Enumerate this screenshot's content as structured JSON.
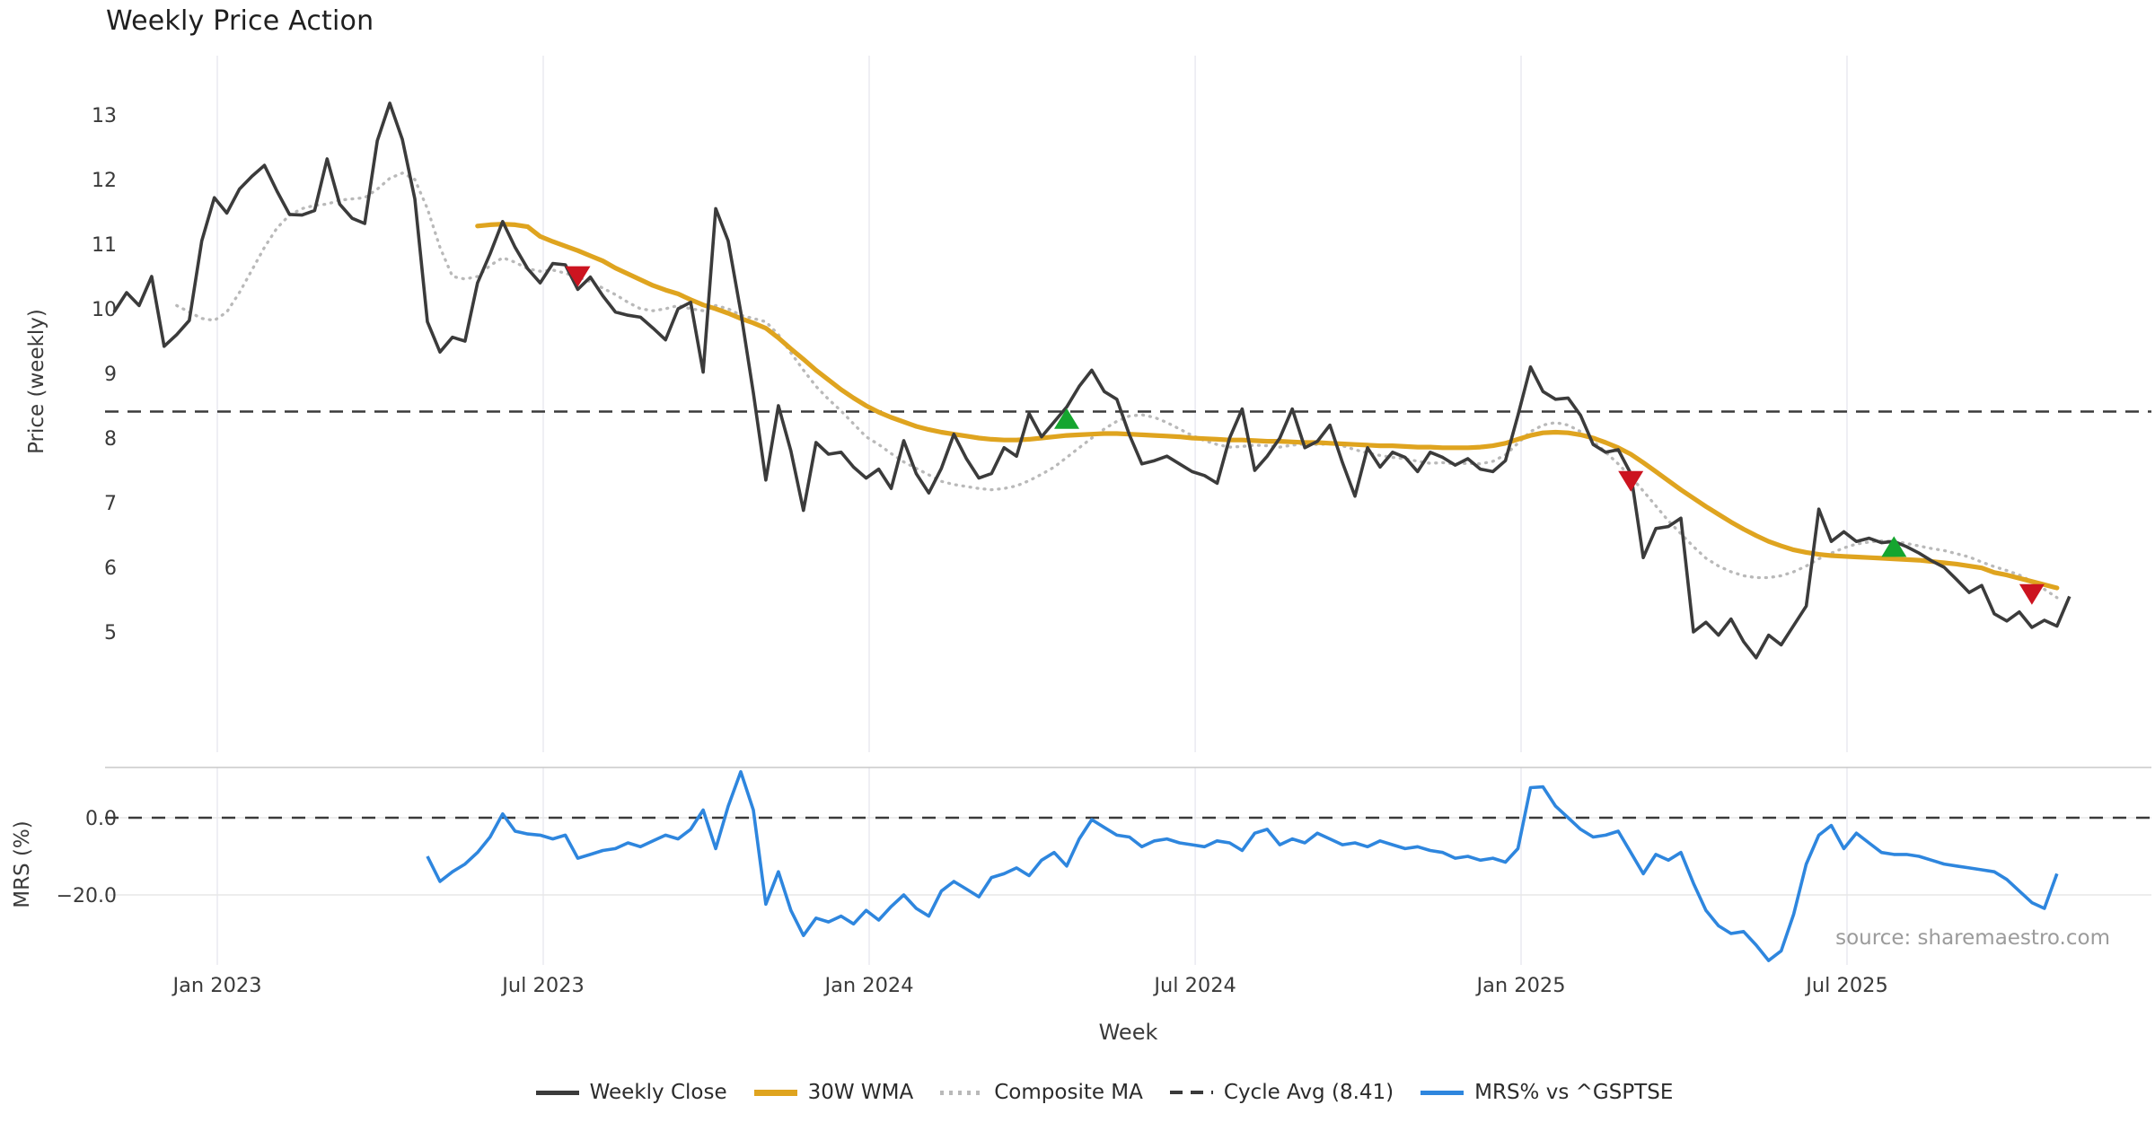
{
  "title": "Weekly Price Action",
  "source_note": "source: sharemaestro.com",
  "axes": {
    "price_ylabel": "Price (weekly)",
    "mrs_ylabel": "MRS (%)",
    "xlabel": "Week"
  },
  "legend": [
    {
      "label": "Weekly Close",
      "style": "solid",
      "color": "#3b3b3b",
      "thick": 5
    },
    {
      "label": "30W WMA",
      "style": "solid",
      "color": "#dfa41f",
      "thick": 7
    },
    {
      "label": "Composite MA",
      "style": "dotted",
      "color": "#b9b9b9",
      "thick": 5
    },
    {
      "label": "Cycle Avg (8.41)",
      "style": "dashed",
      "color": "#3a3a3a",
      "thick": 4
    },
    {
      "label": "MRS% vs ^GSPTSE",
      "style": "solid",
      "color": "#2e86de",
      "thick": 5
    }
  ],
  "colors": {
    "weekly_close": "#3b3b3b",
    "wma30": "#dfa41f",
    "composite": "#b9b9b9",
    "cycle_avg": "#3a3a3a",
    "mrs": "#2e86de",
    "buy_marker": "#15a52f",
    "sell_marker": "#cc1420",
    "gridline": "#ebebf2",
    "mrs_gridline": "#e7e7e7",
    "separator": "#c9c9c9",
    "tick_text": "#3a3a3a"
  },
  "chart_data": {
    "type": "line",
    "x_unit": "weekly index, week 0 ≈ Nov 2022",
    "x_ticks": [
      {
        "week": 8.24,
        "label": "Jan 2023"
      },
      {
        "week": 34.24,
        "label": "Jul 2023"
      },
      {
        "week": 60.24,
        "label": "Jan 2024"
      },
      {
        "week": 86.25,
        "label": "Jul 2024"
      },
      {
        "week": 112.25,
        "label": "Jan 2025"
      },
      {
        "week": 138.25,
        "label": "Jul 2025"
      }
    ],
    "price_panel": {
      "ylabel": "Price (weekly)",
      "ylim": [
        3.3,
        13.9
      ],
      "yticks": [
        5,
        6,
        7,
        8,
        9,
        10,
        11,
        12,
        13
      ],
      "grid": "vertical-only",
      "cycle_avg": 8.41,
      "series": [
        {
          "name": "Weekly Close",
          "start_week": 0,
          "values": [
            9.95,
            10.25,
            10.05,
            10.5,
            9.42,
            9.6,
            9.82,
            11.05,
            11.72,
            11.48,
            11.85,
            12.05,
            12.22,
            11.82,
            11.46,
            11.45,
            11.52,
            12.32,
            11.62,
            11.4,
            11.32,
            12.6,
            13.18,
            12.62,
            11.7,
            9.8,
            9.33,
            9.56,
            9.5,
            10.4,
            10.85,
            11.35,
            10.95,
            10.62,
            10.4,
            10.7,
            10.68,
            10.3,
            10.49,
            10.2,
            9.95,
            9.9,
            9.87,
            9.7,
            9.52,
            10.0,
            10.1,
            9.02,
            11.55,
            11.05,
            9.95,
            8.7,
            7.35,
            8.5,
            7.8,
            6.88,
            7.93,
            7.75,
            7.78,
            7.55,
            7.38,
            7.52,
            7.22,
            7.96,
            7.45,
            7.15,
            7.53,
            8.06,
            7.68,
            7.38,
            7.45,
            7.85,
            7.72,
            8.38,
            8.02,
            8.25,
            8.48,
            8.8,
            9.05,
            8.72,
            8.6,
            8.05,
            7.6,
            7.65,
            7.72,
            7.6,
            7.48,
            7.42,
            7.3,
            8.0,
            8.45,
            7.5,
            7.72,
            8.0,
            8.45,
            7.85,
            7.95,
            8.2,
            7.62,
            7.1,
            7.85,
            7.55,
            7.78,
            7.7,
            7.48,
            7.78,
            7.7,
            7.58,
            7.68,
            7.52,
            7.48,
            7.65,
            8.35,
            9.1,
            8.72,
            8.6,
            8.62,
            8.35,
            7.9,
            7.78,
            7.82,
            7.45,
            6.15,
            6.6,
            6.63,
            6.76,
            5.0,
            5.15,
            4.95,
            5.2,
            4.85,
            4.6,
            4.95,
            4.8,
            5.1,
            5.4,
            6.9,
            6.4,
            6.55,
            6.4,
            6.45,
            6.38,
            6.4,
            6.32,
            6.22,
            6.1,
            6.0,
            5.81,
            5.61,
            5.72,
            5.28,
            5.17,
            5.31,
            5.07,
            5.18,
            5.09,
            5.55
          ]
        },
        {
          "name": "30W WMA",
          "start_week": 29,
          "values": [
            11.28,
            11.3,
            11.31,
            11.3,
            11.27,
            11.12,
            11.04,
            10.97,
            10.9,
            10.82,
            10.74,
            10.63,
            10.54,
            10.45,
            10.36,
            10.29,
            10.23,
            10.14,
            10.06,
            10.0,
            9.93,
            9.85,
            9.78,
            9.7,
            9.55,
            9.38,
            9.22,
            9.05,
            8.9,
            8.75,
            8.62,
            8.5,
            8.4,
            8.32,
            8.25,
            8.18,
            8.13,
            8.09,
            8.06,
            8.03,
            8.0,
            7.98,
            7.97,
            7.97,
            7.98,
            8.0,
            8.02,
            8.04,
            8.05,
            8.06,
            8.07,
            8.07,
            8.06,
            8.05,
            8.04,
            8.03,
            8.02,
            8.0,
            7.99,
            7.98,
            7.97,
            7.97,
            7.96,
            7.95,
            7.95,
            7.94,
            7.93,
            7.93,
            7.92,
            7.91,
            7.9,
            7.89,
            7.88,
            7.88,
            7.87,
            7.86,
            7.86,
            7.85,
            7.85,
            7.85,
            7.86,
            7.88,
            7.92,
            7.98,
            8.04,
            8.08,
            8.09,
            8.08,
            8.05,
            8.0,
            7.93,
            7.85,
            7.75,
            7.62,
            7.48,
            7.34,
            7.2,
            7.07,
            6.94,
            6.82,
            6.7,
            6.59,
            6.49,
            6.4,
            6.33,
            6.27,
            6.23,
            6.2,
            6.18,
            6.17,
            6.16,
            6.15,
            6.14,
            6.13,
            6.12,
            6.11,
            6.09,
            6.07,
            6.05,
            6.02,
            5.99,
            5.92,
            5.88,
            5.83,
            5.78,
            5.73,
            5.68
          ]
        },
        {
          "name": "Composite MA",
          "start_week": 5,
          "values": [
            10.05,
            9.95,
            9.85,
            9.82,
            9.95,
            10.25,
            10.6,
            10.95,
            11.25,
            11.45,
            11.55,
            11.6,
            11.62,
            11.68,
            11.7,
            11.72,
            11.85,
            12.02,
            12.1,
            12.0,
            11.55,
            10.95,
            10.5,
            10.46,
            10.5,
            10.67,
            10.79,
            10.72,
            10.62,
            10.58,
            10.6,
            10.55,
            10.49,
            10.42,
            10.32,
            10.22,
            10.1,
            10.0,
            9.97,
            10.0,
            10.05,
            10.0,
            9.97,
            10.05,
            10.0,
            9.9,
            9.85,
            9.8,
            9.6,
            9.32,
            9.05,
            8.8,
            8.6,
            8.42,
            8.22,
            8.02,
            7.9,
            7.76,
            7.63,
            7.53,
            7.43,
            7.33,
            7.28,
            7.25,
            7.22,
            7.2,
            7.22,
            7.26,
            7.34,
            7.44,
            7.55,
            7.7,
            7.85,
            8.0,
            8.14,
            8.26,
            8.34,
            8.36,
            8.32,
            8.24,
            8.14,
            8.04,
            7.96,
            7.9,
            7.86,
            7.87,
            7.89,
            7.88,
            7.86,
            7.89,
            7.91,
            7.9,
            7.91,
            7.88,
            7.82,
            7.77,
            7.73,
            7.7,
            7.68,
            7.64,
            7.61,
            7.62,
            7.6,
            7.61,
            7.6,
            7.64,
            7.74,
            7.92,
            8.1,
            8.2,
            8.24,
            8.2,
            8.1,
            7.95,
            7.78,
            7.6,
            7.4,
            7.18,
            6.95,
            6.72,
            6.52,
            6.32,
            6.14,
            6.02,
            5.93,
            5.87,
            5.84,
            5.84,
            5.87,
            5.93,
            6.02,
            6.13,
            6.22,
            6.3,
            6.36,
            6.39,
            6.41,
            6.4,
            6.37,
            6.33,
            6.29,
            6.26,
            6.21,
            6.16,
            6.08,
            6.01,
            5.95,
            5.88,
            5.78,
            5.66,
            5.53
          ]
        }
      ],
      "markers": {
        "sell": [
          {
            "week": 37,
            "price": 10.52
          },
          {
            "week": 121,
            "price": 7.35
          },
          {
            "week": 153,
            "price": 5.6
          }
        ],
        "buy": [
          {
            "week": 76,
            "price": 8.28
          },
          {
            "week": 142,
            "price": 6.3
          }
        ]
      }
    },
    "mrs_panel": {
      "ylabel": "MRS (%)",
      "ylim": [
        -40,
        13
      ],
      "yticks": [
        {
          "v": 0,
          "label": "0.0"
        },
        {
          "v": -20,
          "label": "−20.0"
        }
      ],
      "zero_line_dashed": true,
      "series": [
        {
          "name": "MRS% vs ^GSPTSE",
          "start_week": 25,
          "values": [
            -10,
            -16.5,
            -14,
            -12,
            -9,
            -5,
            1,
            -3.5,
            -4.2,
            -4.5,
            -5.5,
            -4.5,
            -10.5,
            -9.5,
            -8.5,
            -8,
            -6.5,
            -7.5,
            -6,
            -4.5,
            -5.5,
            -3,
            2,
            -8,
            3,
            11.9,
            2,
            -22.4,
            -14,
            -24,
            -30.5,
            -26,
            -27,
            -25.5,
            -27.5,
            -24,
            -26.5,
            -23,
            -20,
            -23.5,
            -25.5,
            -19,
            -16.5,
            -18.5,
            -20.5,
            -15.5,
            -14.5,
            -13,
            -15,
            -11,
            -9,
            -12.5,
            -5.5,
            -0.5,
            -2.5,
            -4.5,
            -5,
            -7.5,
            -6,
            -5.5,
            -6.5,
            -7,
            -7.5,
            -6,
            -6.5,
            -8.5,
            -4,
            -3,
            -7,
            -5.5,
            -6.5,
            -4,
            -5.5,
            -7,
            -6.5,
            -7.5,
            -6,
            -7,
            -8,
            -7.5,
            -8.5,
            -9,
            -10.5,
            -10,
            -11,
            -10.5,
            -11.5,
            -8,
            7.8,
            8,
            3,
            0,
            -3,
            -5,
            -4.5,
            -3.5,
            -9,
            -14.5,
            -9.5,
            -11,
            -9,
            -17,
            -24,
            -28,
            -30,
            -29.5,
            -33,
            -37,
            -34.5,
            -25,
            -12,
            -4.5,
            -2,
            -8,
            -4,
            -6.5,
            -9,
            -9.5,
            -9.5,
            -10,
            -11,
            -12,
            -12.5,
            -13,
            -13.5,
            -14,
            -16,
            -19,
            -22,
            -23.5,
            -14.5
          ]
        }
      ]
    }
  }
}
